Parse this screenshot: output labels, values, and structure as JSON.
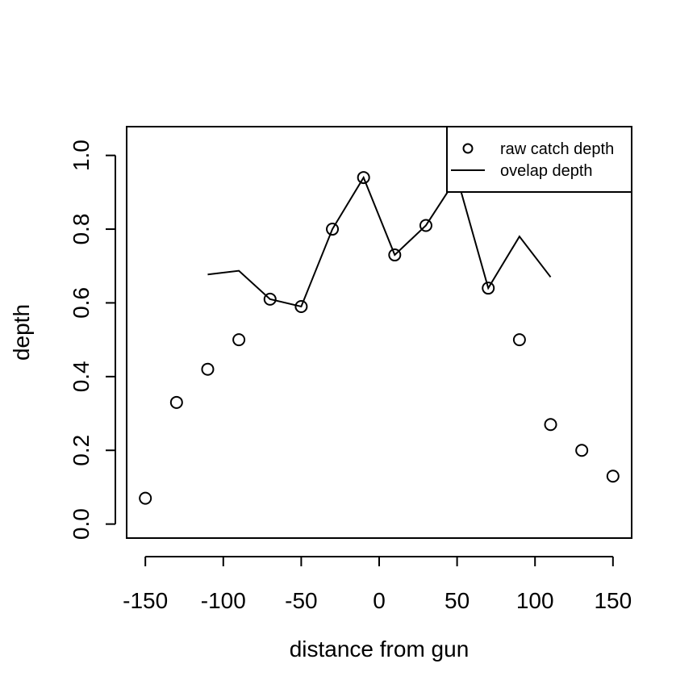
{
  "chart_data": {
    "type": "scatter",
    "xlabel": "distance from gun",
    "ylabel": "depth",
    "xlim": [
      -162,
      162
    ],
    "ylim": [
      -0.038,
      1.078
    ],
    "x_ticks": [
      -150,
      -100,
      -50,
      0,
      50,
      100,
      150
    ],
    "x_tick_labels": [
      "-150",
      "-100",
      "-50",
      "0",
      "50",
      "100",
      "150"
    ],
    "y_ticks": [
      0.0,
      0.2,
      0.4,
      0.6,
      0.8,
      1.0
    ],
    "y_tick_labels": [
      "0.0",
      "0.2",
      "0.4",
      "0.6",
      "0.8",
      "1.0"
    ],
    "grid": false,
    "legend_position": "top-right",
    "series": [
      {
        "name": "raw catch depth",
        "kind": "points",
        "x": [
          -150,
          -130,
          -110,
          -90,
          -70,
          -50,
          -30,
          -10,
          10,
          30,
          50,
          70,
          90,
          110,
          130,
          150
        ],
        "y": [
          0.07,
          0.33,
          0.42,
          0.5,
          0.61,
          0.59,
          0.8,
          0.94,
          0.73,
          0.81,
          0.94,
          0.64,
          0.5,
          0.27,
          0.2,
          0.13
        ]
      },
      {
        "name": "ovelap depth",
        "kind": "line",
        "x": [
          -110,
          -90,
          -70,
          -50,
          -30,
          -10,
          10,
          30,
          50,
          70,
          90,
          110
        ],
        "y": [
          0.677,
          0.687,
          0.61,
          0.59,
          0.8,
          0.94,
          0.73,
          0.81,
          0.94,
          0.64,
          0.78,
          0.67
        ]
      }
    ]
  }
}
